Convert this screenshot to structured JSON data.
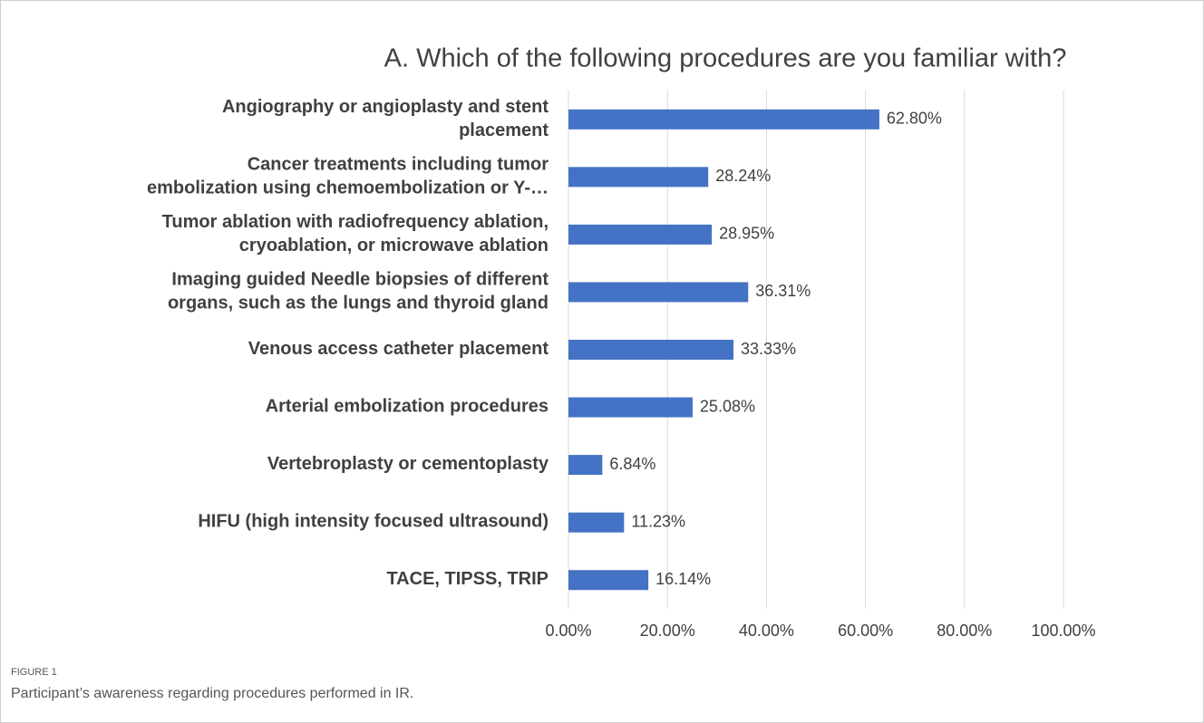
{
  "chart_data": {
    "type": "bar",
    "orientation": "horizontal",
    "title": "A. Which of the following procedures are you familiar with?",
    "categories": [
      "Angiography or angioplasty and stent\nplacement",
      "Cancer treatments including tumor\nembolization using chemoembolization or Y-…",
      "Tumor ablation with radiofrequency ablation,\ncryoablation, or microwave ablation",
      "Imaging guided Needle biopsies of different\norgans, such as the lungs and thyroid gland",
      "Venous access catheter placement",
      "Arterial embolization procedures",
      "Vertebroplasty or cementoplasty",
      "HIFU (high intensity focused ultrasound)",
      "TACE, TIPSS, TRIP"
    ],
    "values": [
      62.8,
      28.24,
      28.95,
      36.31,
      33.33,
      25.08,
      6.84,
      11.23,
      16.14
    ],
    "value_labels": [
      "62.80%",
      "28.24%",
      "28.95%",
      "36.31%",
      "33.33%",
      "25.08%",
      "6.84%",
      "11.23%",
      "16.14%"
    ],
    "color": "#4472c4",
    "xlim": [
      0,
      100
    ],
    "xticks": [
      {
        "value": 0,
        "label": "0.00%"
      },
      {
        "value": 20,
        "label": "20.00%"
      },
      {
        "value": 40,
        "label": "40.00%"
      },
      {
        "value": 60,
        "label": "60.00%"
      },
      {
        "value": 80,
        "label": "80.00%"
      },
      {
        "value": 100,
        "label": "100.00%"
      }
    ],
    "grid": true
  },
  "figure": {
    "label": "FIGURE 1",
    "caption": "Participant’s awareness regarding procedures performed in IR."
  }
}
